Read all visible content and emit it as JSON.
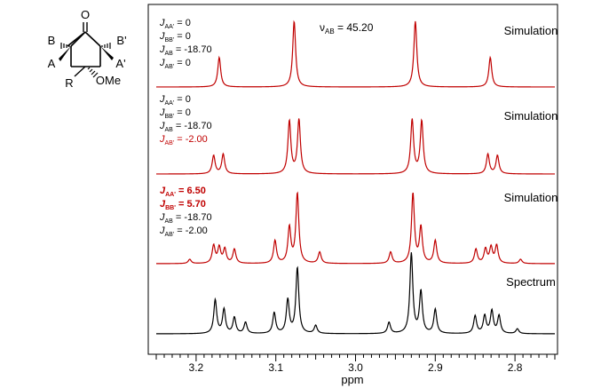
{
  "molecule": {
    "atoms": {
      "oxygen": "O",
      "b_left": "B",
      "b_right": "B'",
      "a_left": "A",
      "a_right": "A'",
      "r_group": "R",
      "ome_group": "OMe"
    }
  },
  "colors": {
    "simulation": "#c00000",
    "spectrum": "#000000",
    "frame": "#000000",
    "highlight_text": "#c00000"
  },
  "chart_data": {
    "type": "line",
    "xlabel": "ppm",
    "xlim": [
      3.25,
      2.75
    ],
    "x_reversed": true,
    "x_ticks": [
      {
        "value": 3.2,
        "label": "3.2"
      },
      {
        "value": 3.1,
        "label": "3.1"
      },
      {
        "value": 3.0,
        "label": "3.0"
      },
      {
        "value": 2.9,
        "label": "2.9"
      },
      {
        "value": 2.8,
        "label": "2.8"
      }
    ],
    "minor_tick_step": 0.01,
    "panels": [
      {
        "label": "Simulation",
        "color": "#c00000",
        "nu_label": {
          "symbol": "ν",
          "sub": "AB",
          "rest": " = 45.20"
        },
        "params": [
          {
            "sym": "J",
            "sub": "AA'",
            "rest": " = 0",
            "highlight": false
          },
          {
            "sym": "J",
            "sub": "BB'",
            "rest": " = 0",
            "highlight": false
          },
          {
            "sym": "J",
            "sub": "AB",
            "rest": " = -18.70",
            "highlight": false
          },
          {
            "sym": "J",
            "sub": "AB'",
            "rest": " = 0",
            "highlight": false
          }
        ],
        "peaks": [
          {
            "x": 3.171,
            "h": 0.45
          },
          {
            "x": 3.077,
            "h": 1.0
          },
          {
            "x": 2.925,
            "h": 1.0
          },
          {
            "x": 2.831,
            "h": 0.45
          }
        ]
      },
      {
        "label": "Simulation",
        "color": "#c00000",
        "params": [
          {
            "sym": "J",
            "sub": "AA'",
            "rest": " = 0",
            "highlight": false
          },
          {
            "sym": "J",
            "sub": "BB'",
            "rest": " = 0",
            "highlight": false
          },
          {
            "sym": "J",
            "sub": "AB",
            "rest": " = -18.70",
            "highlight": false
          },
          {
            "sym": "J",
            "sub": "AB'",
            "rest": " = -2.00",
            "highlight": true
          }
        ],
        "peaks": [
          {
            "x": 3.178,
            "h": 0.28
          },
          {
            "x": 3.166,
            "h": 0.3
          },
          {
            "x": 3.083,
            "h": 0.8
          },
          {
            "x": 3.071,
            "h": 0.82
          },
          {
            "x": 2.929,
            "h": 0.82
          },
          {
            "x": 2.917,
            "h": 0.8
          },
          {
            "x": 2.834,
            "h": 0.3
          },
          {
            "x": 2.822,
            "h": 0.28
          }
        ]
      },
      {
        "label": "Simulation",
        "color": "#c00000",
        "params": [
          {
            "sym": "J",
            "sub": "AA'",
            "rest": " = 6.50",
            "highlight": true
          },
          {
            "sym": "J",
            "sub": "BB'",
            "rest": " = 5.70",
            "highlight": true
          },
          {
            "sym": "J",
            "sub": "AB",
            "rest": " = -18.70",
            "highlight": false
          },
          {
            "sym": "J",
            "sub": "AB'",
            "rest": " = -2.00",
            "highlight": false
          }
        ],
        "peaks": [
          {
            "x": 3.208,
            "h": 0.06
          },
          {
            "x": 3.178,
            "h": 0.25
          },
          {
            "x": 3.171,
            "h": 0.22
          },
          {
            "x": 3.164,
            "h": 0.2
          },
          {
            "x": 3.152,
            "h": 0.2
          },
          {
            "x": 3.101,
            "h": 0.32
          },
          {
            "x": 3.083,
            "h": 0.5
          },
          {
            "x": 3.073,
            "h": 0.98
          },
          {
            "x": 3.045,
            "h": 0.16
          },
          {
            "x": 2.956,
            "h": 0.16
          },
          {
            "x": 2.928,
            "h": 0.98
          },
          {
            "x": 2.918,
            "h": 0.5
          },
          {
            "x": 2.9,
            "h": 0.32
          },
          {
            "x": 2.849,
            "h": 0.2
          },
          {
            "x": 2.837,
            "h": 0.2
          },
          {
            "x": 2.83,
            "h": 0.22
          },
          {
            "x": 2.823,
            "h": 0.25
          },
          {
            "x": 2.793,
            "h": 0.06
          }
        ]
      },
      {
        "label": "Spectrum",
        "color": "#000000",
        "peaks": [
          {
            "x": 3.176,
            "h": 0.42
          },
          {
            "x": 3.165,
            "h": 0.3
          },
          {
            "x": 3.152,
            "h": 0.2
          },
          {
            "x": 3.138,
            "h": 0.14
          },
          {
            "x": 3.102,
            "h": 0.26
          },
          {
            "x": 3.085,
            "h": 0.42
          },
          {
            "x": 3.073,
            "h": 0.82
          },
          {
            "x": 3.05,
            "h": 0.1
          },
          {
            "x": 2.958,
            "h": 0.14
          },
          {
            "x": 2.93,
            "h": 1.0
          },
          {
            "x": 2.918,
            "h": 0.52
          },
          {
            "x": 2.9,
            "h": 0.3
          },
          {
            "x": 2.85,
            "h": 0.22
          },
          {
            "x": 2.838,
            "h": 0.22
          },
          {
            "x": 2.829,
            "h": 0.28
          },
          {
            "x": 2.82,
            "h": 0.22
          },
          {
            "x": 2.797,
            "h": 0.06
          }
        ]
      }
    ],
    "grid": false
  }
}
